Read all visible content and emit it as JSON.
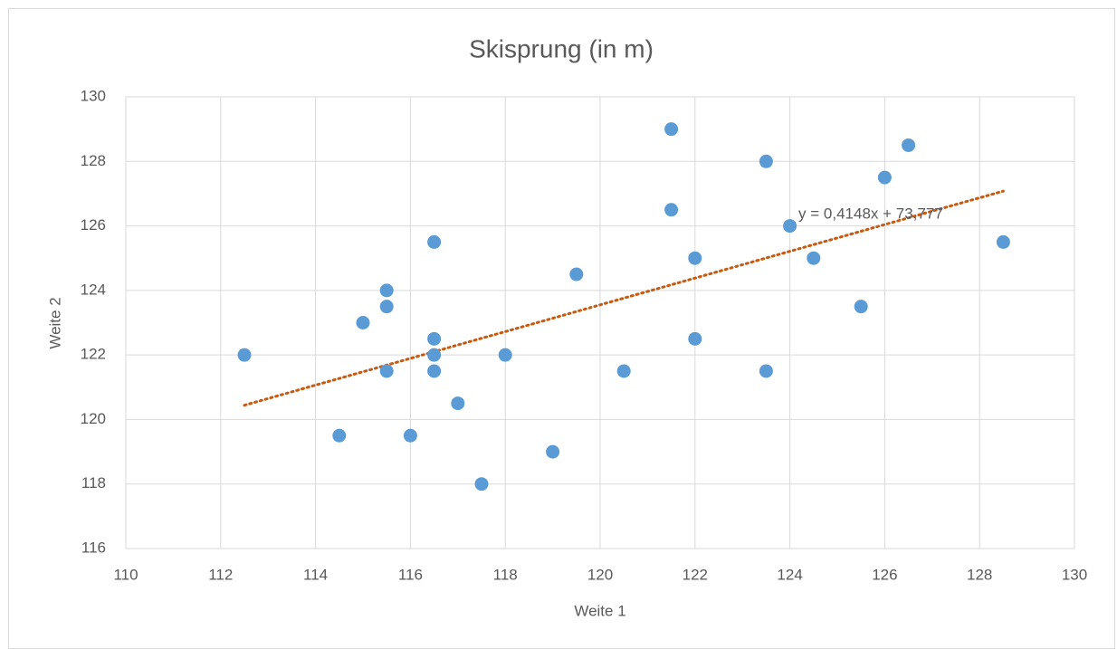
{
  "chart_data": {
    "type": "scatter",
    "title": "Skisprung (in m)",
    "xlabel": "Weite 1",
    "ylabel": "Weite 2",
    "x": [
      112.5,
      114.5,
      115,
      115.5,
      115.5,
      115.5,
      116,
      116.5,
      116.5,
      116.5,
      116.5,
      117,
      117.5,
      118,
      119,
      119.5,
      120.5,
      121.5,
      121.5,
      122,
      122,
      123.5,
      123.5,
      124,
      124.5,
      125.5,
      126,
      126.5,
      128.5
    ],
    "values": [
      122,
      119.5,
      123,
      124,
      123.5,
      121.5,
      119.5,
      125.5,
      122.5,
      122,
      121.5,
      120.5,
      118,
      122,
      119,
      124.5,
      121.5,
      129,
      126.5,
      125,
      122.5,
      128,
      121.5,
      126,
      125,
      123.5,
      127.5,
      128.5,
      125.5
    ],
    "color": "#5b9bd5",
    "trendline": {
      "slope": 0.4148,
      "intercept": 73.777,
      "label": "y = 0,4148x + 73,777",
      "color": "#c55a11"
    },
    "xlim": [
      110,
      130
    ],
    "xticks": [
      110,
      112,
      114,
      116,
      118,
      120,
      122,
      124,
      126,
      128,
      130
    ],
    "ylim": [
      116,
      130
    ],
    "yticks": [
      116,
      118,
      120,
      122,
      124,
      126,
      128,
      130
    ],
    "grid": true
  }
}
